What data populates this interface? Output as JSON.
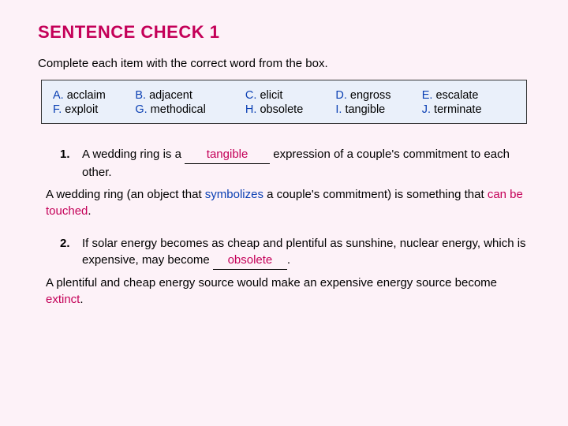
{
  "title": "SENTENCE CHECK 1",
  "instruction": "Complete each item with the correct word from the box.",
  "box": {
    "r1c1L": "A.",
    "r1c1W": " acclaim",
    "r1c2L": "B.",
    "r1c2W": " adjacent",
    "r1c3L": "C.",
    "r1c3W": " elicit",
    "r1c4L": "D.",
    "r1c4W": " engross",
    "r1c5L": "E.",
    "r1c5W": " escalate",
    "r2c1L": "F.",
    "r2c1W": " exploit",
    "r2c2L": "G.",
    "r2c2W": " methodical",
    "r2c3L": "H.",
    "r2c3W": " obsolete",
    "r2c4L": "I.",
    "r2c4W": "  tangible",
    "r2c5L": "J.",
    "r2c5W": " terminate"
  },
  "q1": {
    "num": "1.",
    "pre": "A wedding ring is a ",
    "blank": "tangible",
    "post": " expression of a couple's commitment to each other."
  },
  "e1": {
    "a": "A wedding ring (an object that ",
    "b": "symbolizes",
    "c": " a couple's commitment) is something that ",
    "d": "can be touched",
    "e": "."
  },
  "q2": {
    "num": "2.",
    "pre": "If solar energy becomes as cheap and plentiful as sunshine, nuclear energy, which is expensive, may become ",
    "blank": "obsolete",
    "post": "."
  },
  "e2": {
    "a": "A plentiful and cheap energy source would make an expensive energy source become ",
    "b": "extinct",
    "c": "."
  }
}
